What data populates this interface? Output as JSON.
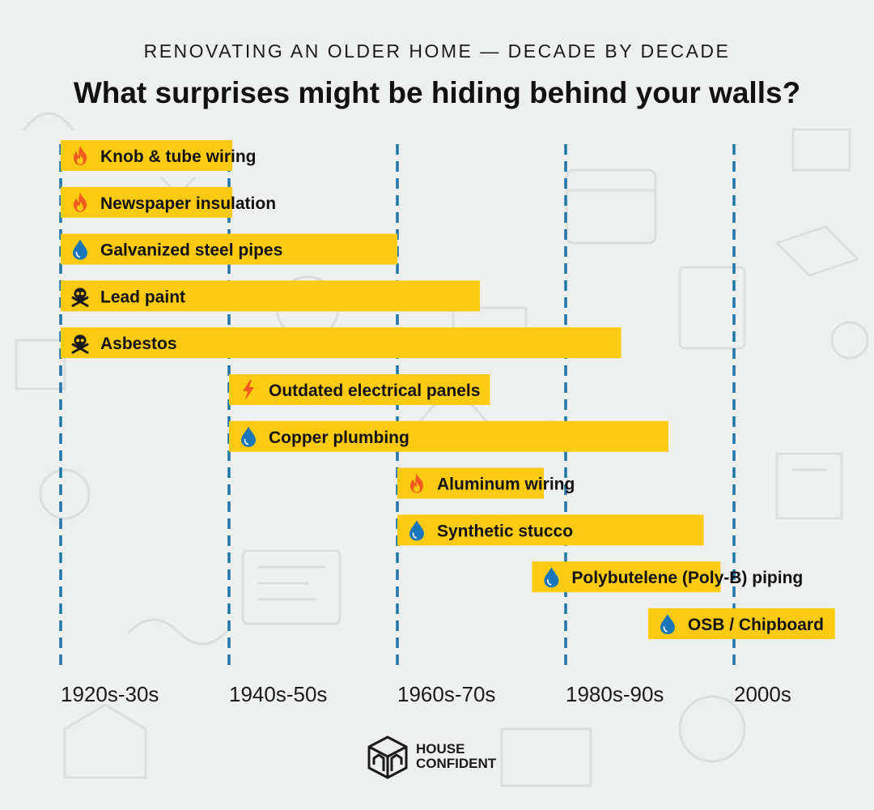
{
  "header": {
    "subtitle": "RENOVATING AN OLDER HOME — DECADE BY DECADE",
    "title": "What surprises might be hiding behind your walls?"
  },
  "colors": {
    "bar": "#fcca10",
    "gridline": "#2176a8",
    "fire": "#f25a1f",
    "water": "#1976b8",
    "skull": "#1a1a1a",
    "bolt": "#f25a1f"
  },
  "chart_data": {
    "type": "bar",
    "orientation": "horizontal-range",
    "x_categories": [
      "1920s-30s",
      "1940s-50s",
      "1960s-70s",
      "1980s-90s",
      "2000s"
    ],
    "x_index_range": [
      0,
      4
    ],
    "grid": "vertical-dashed",
    "series": [
      {
        "label": "Knob & tube wiring",
        "icon": "fire-icon",
        "start": 0,
        "end": 1.02
      },
      {
        "label": "Newspaper insulation",
        "icon": "fire-icon",
        "start": 0,
        "end": 1.02
      },
      {
        "label": "Galvanized steel pipes",
        "icon": "water-drop-icon",
        "start": 0,
        "end": 2.0
      },
      {
        "label": "Lead paint",
        "icon": "skull-crossbones-icon",
        "start": 0,
        "end": 2.49
      },
      {
        "label": "Asbestos",
        "icon": "skull-crossbones-icon",
        "start": 0,
        "end": 3.33
      },
      {
        "label": "Outdated electrical panels",
        "icon": "lightning-icon",
        "start": 1.0,
        "end": 2.55
      },
      {
        "label": "Copper plumbing",
        "icon": "water-drop-icon",
        "start": 1.0,
        "end": 3.61
      },
      {
        "label": "Aluminum wiring",
        "icon": "fire-icon",
        "start": 2.0,
        "end": 2.87
      },
      {
        "label": "Synthetic stucco",
        "icon": "water-drop-icon",
        "start": 2.0,
        "end": 3.82
      },
      {
        "label": "Polybutelene (Poly-B) piping",
        "icon": "water-drop-icon",
        "start": 2.8,
        "end": 3.92
      },
      {
        "label": "OSB / Chipboard",
        "icon": "water-drop-icon",
        "start": 3.49,
        "end": 4.6
      }
    ]
  },
  "brand": {
    "line1": "HOUSE",
    "line2": "CONFIDENT",
    "logo_icon": "house-box-logo-icon"
  }
}
